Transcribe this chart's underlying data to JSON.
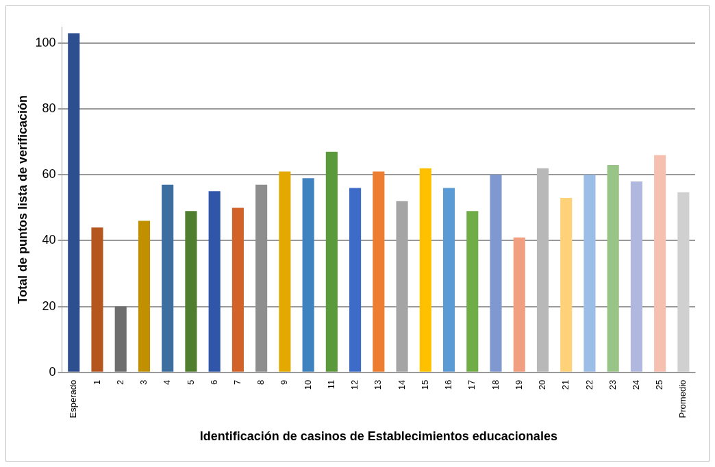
{
  "chart_data": {
    "type": "bar",
    "xlabel": "Identificación de casinos de Establecimientos educacionales",
    "ylabel": "Total de puntos lista de verificación",
    "categories": [
      "Esperado",
      "1",
      "2",
      "3",
      "4",
      "5",
      "6",
      "7",
      "8",
      "9",
      "10",
      "11",
      "12",
      "13",
      "14",
      "15",
      "16",
      "17",
      "18",
      "19",
      "20",
      "21",
      "22",
      "23",
      "24",
      "25",
      "Promedio"
    ],
    "values": [
      103,
      44,
      20,
      46,
      57,
      49,
      55,
      50,
      57,
      61,
      59,
      67,
      56,
      61,
      52,
      62,
      56,
      49,
      60,
      41,
      62,
      53,
      60,
      63,
      58,
      66,
      54.7
    ],
    "colors": [
      "#2e4f8f",
      "#b5561f",
      "#6e6e6e",
      "#c09000",
      "#3d6ea0",
      "#4e7e2e",
      "#2f56a8",
      "#d0622a",
      "#8e8e8e",
      "#e3a900",
      "#3e82c0",
      "#5a9a3a",
      "#3c6cc8",
      "#ed7d31",
      "#a5a5a5",
      "#ffc000",
      "#5b9bd5",
      "#70ad47",
      "#8098d0",
      "#f0a080",
      "#b8b8b8",
      "#ffd27a",
      "#9cbde6",
      "#98c488",
      "#b0b8e0",
      "#f6c0b0",
      "#d0d0d0"
    ],
    "ylim": [
      0,
      105
    ],
    "yticks": [
      0,
      20,
      40,
      60,
      80,
      100
    ],
    "grid": "y",
    "legend": false
  }
}
